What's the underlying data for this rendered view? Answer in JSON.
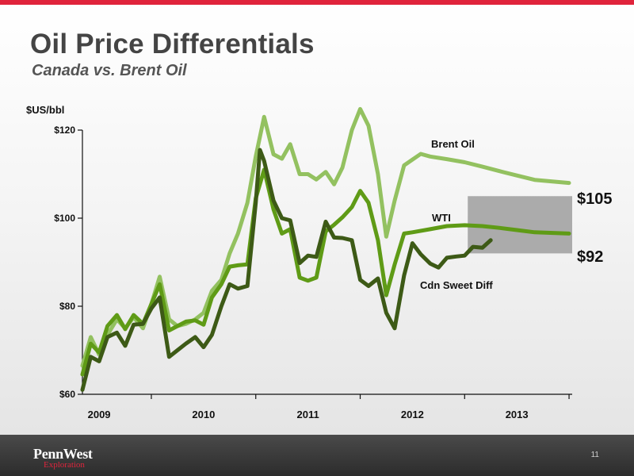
{
  "slide": {
    "title": "Oil Price Differentials",
    "subtitle": "Canada vs. Brent Oil",
    "page_number": "11"
  },
  "logo": {
    "name": "PennWest",
    "tagline": "Exploration"
  },
  "colors": {
    "accent_red": "#e0243c",
    "brent": "#93c160",
    "wti": "#5f9b16",
    "cdn_sweet": "#3d5a16",
    "forecast_band": "#a6a6a6"
  },
  "chart_data": {
    "type": "line",
    "ylabel": "$US/bbl",
    "ylim": [
      60,
      120
    ],
    "yticks": [
      {
        "value": 60,
        "label": "$60"
      },
      {
        "value": 80,
        "label": "$80"
      },
      {
        "value": 100,
        "label": "$100"
      },
      {
        "value": 120,
        "label": "$120"
      }
    ],
    "xlim": [
      2008.84,
      2013.53
    ],
    "xticks": [
      {
        "value": 2009,
        "label": "2009"
      },
      {
        "value": 2010,
        "label": "2010"
      },
      {
        "value": 2011,
        "label": "2011"
      },
      {
        "value": 2012,
        "label": "2012"
      },
      {
        "value": 2013,
        "label": "2013"
      }
    ],
    "grid": false,
    "legend": "inline labels",
    "series": [
      {
        "name": "Brent Oil",
        "color": "#93c160",
        "points": [
          [
            2008.84,
            66.5
          ],
          [
            2008.92,
            73.0
          ],
          [
            2009.0,
            69.0
          ],
          [
            2009.08,
            73.5
          ],
          [
            2009.17,
            77.0
          ],
          [
            2009.25,
            75.0
          ],
          [
            2009.33,
            77.5
          ],
          [
            2009.42,
            75.0
          ],
          [
            2009.5,
            80.5
          ],
          [
            2009.58,
            86.7
          ],
          [
            2009.67,
            77.0
          ],
          [
            2009.75,
            75.5
          ],
          [
            2009.83,
            76.0
          ],
          [
            2009.92,
            77.0
          ],
          [
            2010.0,
            78.5
          ],
          [
            2010.08,
            83.5
          ],
          [
            2010.17,
            86.0
          ],
          [
            2010.25,
            92.0
          ],
          [
            2010.33,
            96.5
          ],
          [
            2010.42,
            103.5
          ],
          [
            2010.5,
            114.0
          ],
          [
            2010.58,
            123.0
          ],
          [
            2010.67,
            114.5
          ],
          [
            2010.75,
            113.5
          ],
          [
            2010.83,
            116.8
          ],
          [
            2010.92,
            110.0
          ],
          [
            2011.0,
            110.0
          ],
          [
            2011.08,
            108.8
          ],
          [
            2011.17,
            110.5
          ],
          [
            2011.25,
            107.7
          ],
          [
            2011.33,
            111.5
          ],
          [
            2011.42,
            120.0
          ],
          [
            2011.5,
            124.8
          ],
          [
            2011.58,
            121.0
          ],
          [
            2011.67,
            110.0
          ],
          [
            2011.75,
            95.8
          ],
          [
            2011.83,
            104.0
          ],
          [
            2011.92,
            112.0
          ],
          [
            2012.0,
            113.3
          ],
          [
            2012.08,
            114.6
          ],
          [
            2012.17,
            114.0
          ],
          [
            2012.33,
            113.4
          ],
          [
            2012.5,
            112.7
          ],
          [
            2012.67,
            111.7
          ],
          [
            2012.83,
            110.7
          ],
          [
            2013.0,
            109.7
          ],
          [
            2013.17,
            108.7
          ],
          [
            2013.5,
            108.0
          ]
        ]
      },
      {
        "name": "WTI",
        "color": "#5f9b16",
        "points": [
          [
            2008.84,
            64.5
          ],
          [
            2008.92,
            71.5
          ],
          [
            2009.0,
            69.5
          ],
          [
            2009.08,
            75.5
          ],
          [
            2009.17,
            78.0
          ],
          [
            2009.25,
            74.8
          ],
          [
            2009.33,
            78.0
          ],
          [
            2009.42,
            76.0
          ],
          [
            2009.5,
            80.5
          ],
          [
            2009.58,
            85.0
          ],
          [
            2009.67,
            74.5
          ],
          [
            2009.75,
            75.5
          ],
          [
            2009.83,
            76.5
          ],
          [
            2009.92,
            76.8
          ],
          [
            2010.0,
            75.8
          ],
          [
            2010.08,
            82.0
          ],
          [
            2010.17,
            85.0
          ],
          [
            2010.25,
            89.0
          ],
          [
            2010.33,
            89.3
          ],
          [
            2010.42,
            89.5
          ],
          [
            2010.5,
            104.5
          ],
          [
            2010.58,
            111.0
          ],
          [
            2010.67,
            102.0
          ],
          [
            2010.75,
            96.5
          ],
          [
            2010.83,
            97.5
          ],
          [
            2010.92,
            86.5
          ],
          [
            2011.0,
            85.8
          ],
          [
            2011.08,
            86.5
          ],
          [
            2011.17,
            97.0
          ],
          [
            2011.25,
            98.5
          ],
          [
            2011.33,
            100.2
          ],
          [
            2011.42,
            102.5
          ],
          [
            2011.5,
            106.2
          ],
          [
            2011.58,
            103.5
          ],
          [
            2011.67,
            95.0
          ],
          [
            2011.75,
            82.5
          ],
          [
            2011.83,
            89.5
          ],
          [
            2011.92,
            96.5
          ],
          [
            2012.0,
            96.8
          ],
          [
            2012.17,
            97.5
          ],
          [
            2012.33,
            98.2
          ],
          [
            2012.5,
            98.4
          ],
          [
            2012.67,
            98.2
          ],
          [
            2012.83,
            97.8
          ],
          [
            2013.0,
            97.3
          ],
          [
            2013.17,
            96.8
          ],
          [
            2013.5,
            96.5
          ]
        ]
      },
      {
        "name": "Cdn Sweet Diff",
        "color": "#3d5a16",
        "points": [
          [
            2008.84,
            61.0
          ],
          [
            2008.92,
            68.5
          ],
          [
            2009.0,
            67.5
          ],
          [
            2009.08,
            73.0
          ],
          [
            2009.17,
            74.0
          ],
          [
            2009.25,
            71.0
          ],
          [
            2009.33,
            75.8
          ],
          [
            2009.42,
            76.0
          ],
          [
            2009.5,
            79.5
          ],
          [
            2009.58,
            82.0
          ],
          [
            2009.67,
            68.5
          ],
          [
            2009.75,
            70.0
          ],
          [
            2009.83,
            71.5
          ],
          [
            2009.92,
            73.0
          ],
          [
            2010.0,
            70.7
          ],
          [
            2010.08,
            73.5
          ],
          [
            2010.17,
            80.0
          ],
          [
            2010.25,
            85.0
          ],
          [
            2010.33,
            84.0
          ],
          [
            2010.42,
            84.6
          ],
          [
            2010.5,
            103.5
          ],
          [
            2010.54,
            115.5
          ],
          [
            2010.58,
            113.0
          ],
          [
            2010.67,
            104.0
          ],
          [
            2010.75,
            100.0
          ],
          [
            2010.83,
            99.5
          ],
          [
            2010.92,
            89.8
          ],
          [
            2011.0,
            91.5
          ],
          [
            2011.08,
            91.2
          ],
          [
            2011.17,
            99.2
          ],
          [
            2011.25,
            95.6
          ],
          [
            2011.33,
            95.5
          ],
          [
            2011.42,
            95.0
          ],
          [
            2011.5,
            86.0
          ],
          [
            2011.58,
            84.6
          ],
          [
            2011.67,
            86.3
          ],
          [
            2011.75,
            78.5
          ],
          [
            2011.83,
            75.0
          ],
          [
            2011.92,
            87.0
          ],
          [
            2012.0,
            94.3
          ],
          [
            2012.08,
            91.8
          ],
          [
            2012.17,
            89.7
          ],
          [
            2012.25,
            88.8
          ],
          [
            2012.33,
            91.0
          ],
          [
            2012.42,
            91.3
          ],
          [
            2012.5,
            91.5
          ],
          [
            2012.58,
            93.5
          ],
          [
            2012.67,
            93.3
          ],
          [
            2012.75,
            95.0
          ]
        ]
      }
    ],
    "forecast_band": {
      "x": [
        2012.53,
        2013.53
      ],
      "y": [
        92,
        105
      ]
    },
    "annotations": [
      {
        "text": "$105",
        "value": 105
      },
      {
        "text": "$92",
        "value": 92
      }
    ]
  }
}
